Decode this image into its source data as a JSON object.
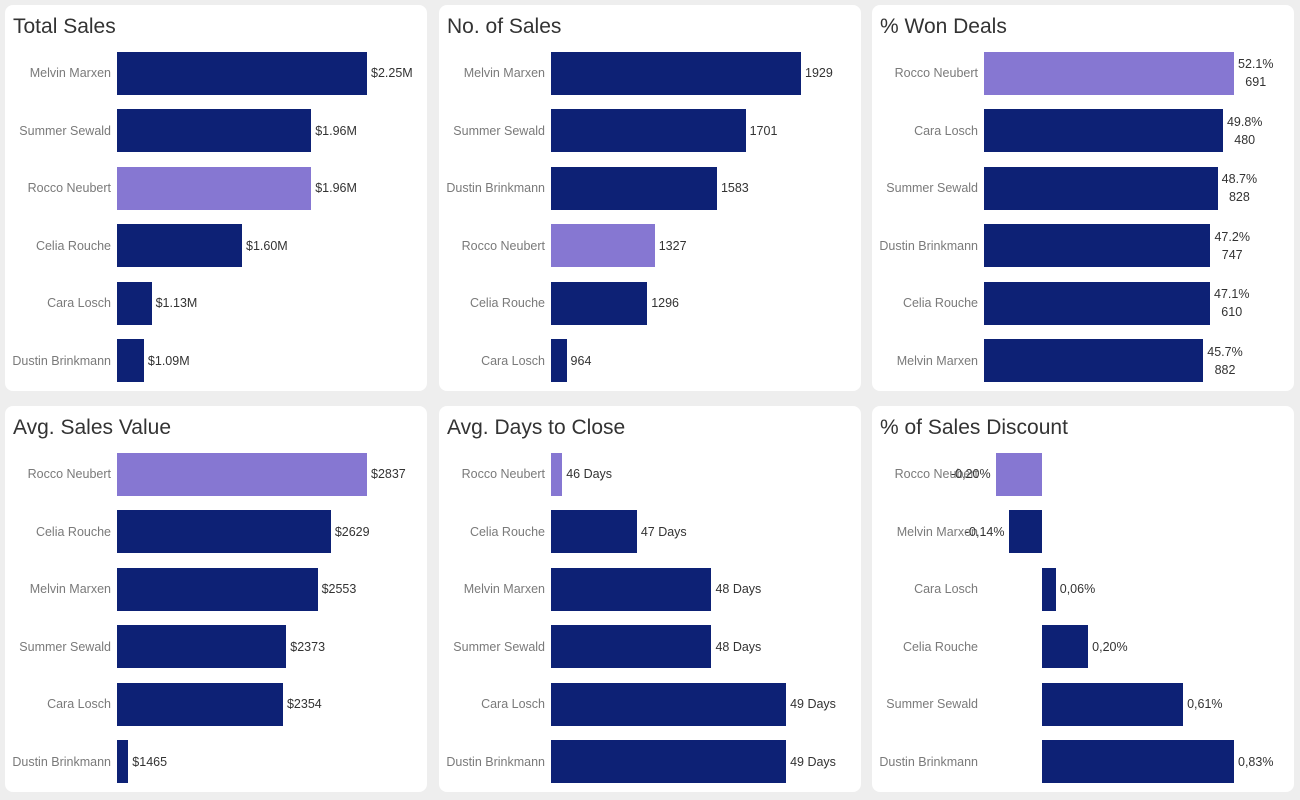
{
  "colors": {
    "bar": "#0d2175",
    "highlight": "#8677d2",
    "background": "#eeeeee",
    "panel": "#ffffff"
  },
  "chart_data": [
    {
      "type": "bar",
      "orientation": "horizontal",
      "title": "Total Sales",
      "categories": [
        "Melvin Marxen",
        "Summer Sewald",
        "Rocco Neubert",
        "Celia Rouche",
        "Cara Losch",
        "Dustin Brinkmann"
      ],
      "values": [
        2.25,
        1.96,
        1.96,
        1.6,
        1.13,
        1.09
      ],
      "value_labels": [
        "$2.25M",
        "$1.96M",
        "$1.96M",
        "$1.60M",
        "$1.13M",
        "$1.09M"
      ],
      "units": "$M",
      "xlim": [
        0.95,
        2.25
      ],
      "highlighted": "Rocco Neubert"
    },
    {
      "type": "bar",
      "orientation": "horizontal",
      "title": "No. of Sales",
      "categories": [
        "Melvin Marxen",
        "Summer Sewald",
        "Dustin Brinkmann",
        "Rocco Neubert",
        "Celia Rouche",
        "Cara Losch"
      ],
      "values": [
        1929,
        1701,
        1583,
        1327,
        1296,
        964
      ],
      "value_labels": [
        "1929",
        "1701",
        "1583",
        "1327",
        "1296",
        "964"
      ],
      "xlim": [
        900,
        1929
      ],
      "highlighted": "Rocco Neubert"
    },
    {
      "type": "bar",
      "orientation": "horizontal",
      "title": "% Won Deals",
      "categories": [
        "Rocco Neubert",
        "Cara Losch",
        "Summer Sewald",
        "Dustin Brinkmann",
        "Celia Rouche",
        "Melvin Marxen"
      ],
      "values": [
        52.1,
        49.8,
        48.7,
        47.2,
        47.1,
        45.7
      ],
      "value_labels": [
        "52.1%",
        "49.8%",
        "48.7%",
        "47.2%",
        "47.1%",
        "45.7%"
      ],
      "secondary_labels": [
        "691",
        "480",
        "828",
        "747",
        "610",
        "882"
      ],
      "xlim": [
        0,
        52.1
      ],
      "highlighted": "Rocco Neubert"
    },
    {
      "type": "bar",
      "orientation": "horizontal",
      "title": "Avg. Sales Value",
      "categories": [
        "Rocco Neubert",
        "Celia Rouche",
        "Melvin Marxen",
        "Summer Sewald",
        "Cara Losch",
        "Dustin Brinkmann"
      ],
      "values": [
        2837,
        2629,
        2553,
        2373,
        2354,
        1465
      ],
      "value_labels": [
        "$2837",
        "$2629",
        "$2553",
        "$2373",
        "$2354",
        "$1465"
      ],
      "xlim": [
        1400,
        2837
      ],
      "highlighted": "Rocco Neubert"
    },
    {
      "type": "bar",
      "orientation": "horizontal",
      "title": "Avg. Days to Close",
      "categories": [
        "Rocco Neubert",
        "Celia Rouche",
        "Melvin Marxen",
        "Summer Sewald",
        "Cara Losch",
        "Dustin Brinkmann"
      ],
      "values": [
        46,
        47,
        48,
        48,
        49,
        49
      ],
      "value_labels": [
        "46 Days",
        "47 Days",
        "48 Days",
        "48 Days",
        "49 Days",
        "49 Days"
      ],
      "xlim": [
        45.85,
        49.2
      ],
      "highlighted": "Rocco Neubert"
    },
    {
      "type": "bar",
      "orientation": "horizontal",
      "title": "% of Sales Discount",
      "categories": [
        "Rocco Neubert",
        "Melvin Marxen",
        "Cara Losch",
        "Celia Rouche",
        "Summer Sewald",
        "Dustin Brinkmann"
      ],
      "values": [
        -0.2,
        -0.14,
        0.06,
        0.2,
        0.61,
        0.83
      ],
      "value_labels": [
        "-0,20%",
        "-0,14%",
        "0,06%",
        "0,20%",
        "0,61%",
        "0,83%"
      ],
      "xlim": [
        -0.25,
        0.83
      ],
      "highlighted": "Rocco Neubert"
    }
  ]
}
